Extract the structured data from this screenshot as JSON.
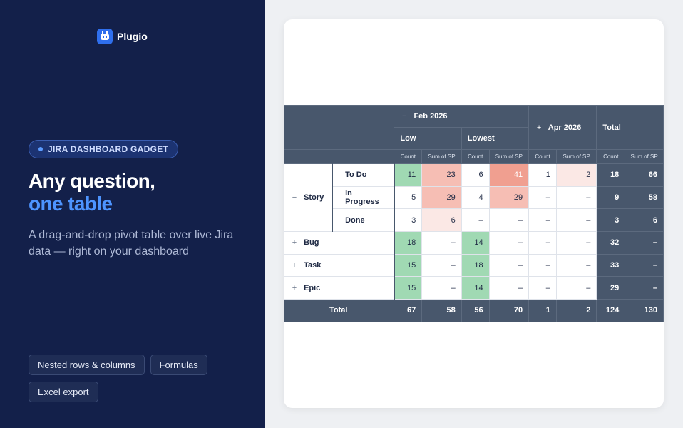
{
  "brand": {
    "name": "Plugio"
  },
  "badge": "JIRA DASHBOARD GADGET",
  "headline": {
    "line1": "Any question,",
    "line2": "one table"
  },
  "subtitle": "A drag-and-drop pivot table over live Jira data — right on your dashboard",
  "features": [
    "Nested rows & columns",
    "Formulas",
    "Excel export"
  ],
  "pivot": {
    "col_groups": {
      "feb": "Feb 2026",
      "apr": "Apr 2026",
      "total": "Total"
    },
    "sub_groups": {
      "low": "Low",
      "lowest": "Lowest"
    },
    "measures": {
      "count": "Count",
      "sp": "Sum of SP"
    },
    "expand_open": "−",
    "expand_closed": "+",
    "dash": "–",
    "rows": [
      {
        "group": "Story",
        "status": "To Do",
        "cells": [
          "11",
          "23",
          "6",
          "41",
          "1",
          "2",
          "18",
          "66"
        ]
      },
      {
        "group": "Story",
        "status": "In Progress",
        "cells": [
          "5",
          "29",
          "4",
          "29",
          "–",
          "–",
          "9",
          "58"
        ]
      },
      {
        "group": "Story",
        "status": "Done",
        "cells": [
          "3",
          "6",
          "–",
          "–",
          "–",
          "–",
          "3",
          "6"
        ]
      },
      {
        "group": "Bug",
        "cells": [
          "18",
          "–",
          "14",
          "–",
          "–",
          "–",
          "32",
          "–"
        ]
      },
      {
        "group": "Task",
        "cells": [
          "15",
          "–",
          "18",
          "–",
          "–",
          "–",
          "33",
          "–"
        ]
      },
      {
        "group": "Epic",
        "cells": [
          "15",
          "–",
          "14",
          "–",
          "–",
          "–",
          "29",
          "–"
        ]
      }
    ],
    "total": {
      "label": "Total",
      "cells": [
        "67",
        "58",
        "56",
        "70",
        "1",
        "2",
        "124",
        "130"
      ]
    }
  }
}
